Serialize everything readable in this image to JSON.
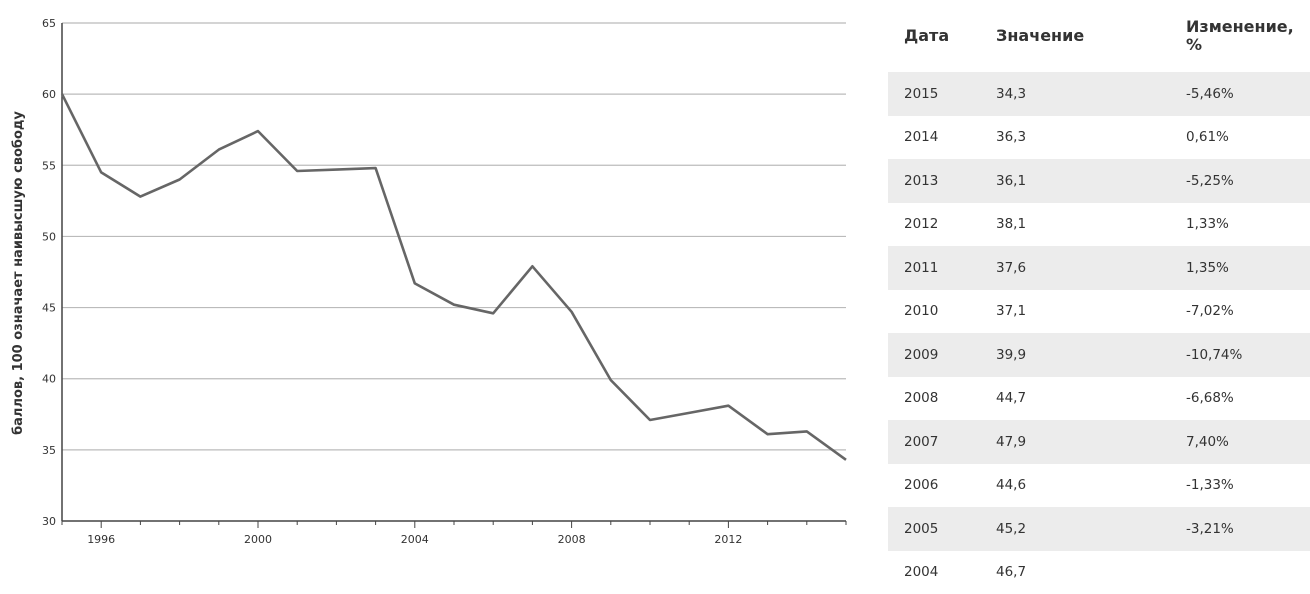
{
  "chart_data": {
    "type": "line",
    "ylabel": "баллов, 100 означает наивысшую свободу",
    "xlabel": "",
    "ylim": [
      30,
      65
    ],
    "xlim": [
      1995,
      2015
    ],
    "yticks": [
      "30",
      "35",
      "40",
      "45",
      "50",
      "55",
      "60",
      "65"
    ],
    "xticks": [
      "1996",
      "2000",
      "2004",
      "2008",
      "2012"
    ],
    "grid": "horizontal",
    "series": [
      {
        "x": [
          1995,
          1996,
          1997,
          1998,
          1999,
          2000,
          2001,
          2002,
          2003,
          2004,
          2005,
          2006,
          2007,
          2008,
          2009,
          2010,
          2011,
          2012,
          2013,
          2014,
          2015
        ],
        "values": [
          60,
          54.5,
          52.8,
          54.0,
          56.1,
          57.4,
          54.6,
          54.7,
          54.8,
          46.7,
          45.2,
          44.6,
          47.9,
          44.7,
          39.9,
          37.1,
          37.6,
          38.1,
          36.1,
          36.3,
          34.3
        ]
      }
    ],
    "colors": {
      "line": "#666666",
      "grid": "#bbbbbb",
      "axis": "#444444"
    }
  },
  "table": {
    "headers": [
      "Дата",
      "Значение",
      "Изменение,",
      "%"
    ],
    "rows": [
      [
        "2015",
        "34,3",
        "-5,46%"
      ],
      [
        "2014",
        "36,3",
        "0,61%"
      ],
      [
        "2013",
        "36,1",
        "-5,25%"
      ],
      [
        "2012",
        "38,1",
        "1,33%"
      ],
      [
        "2011",
        "37,6",
        "1,35%"
      ],
      [
        "2010",
        "37,1",
        "-7,02%"
      ],
      [
        "2009",
        "39,9",
        "-10,74%"
      ],
      [
        "2008",
        "44,7",
        "-6,68%"
      ],
      [
        "2007",
        "47,9",
        "7,40%"
      ],
      [
        "2006",
        "44,6",
        "-1,33%"
      ],
      [
        "2005",
        "45,2",
        "-3,21%"
      ],
      [
        "2004",
        "46,7",
        ""
      ]
    ],
    "shade_color": "#ececec"
  }
}
